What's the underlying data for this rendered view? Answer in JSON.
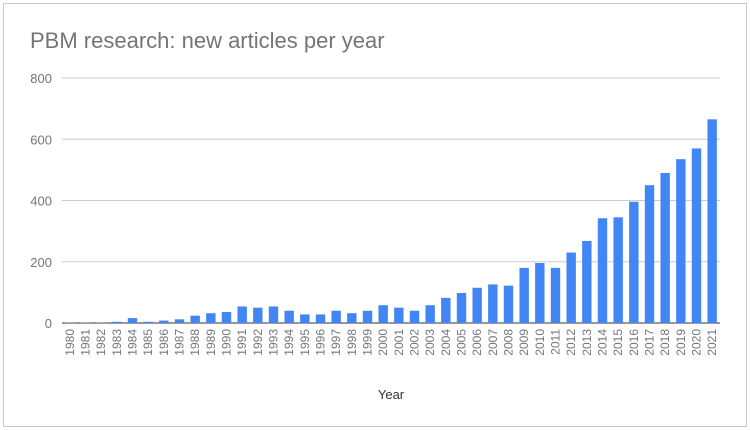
{
  "chart_data": {
    "type": "bar",
    "title": "PBM research: new articles per year",
    "xlabel": "Year",
    "ylabel": "",
    "ylim": [
      0,
      800
    ],
    "yticks": [
      0,
      200,
      400,
      600,
      800
    ],
    "grid": true,
    "legend": "none",
    "bar_color": "#4285f4",
    "categories": [
      "1980",
      "1981",
      "1982",
      "1983",
      "1984",
      "1985",
      "1986",
      "1987",
      "1988",
      "1989",
      "1990",
      "1991",
      "1992",
      "1993",
      "1994",
      "1995",
      "1996",
      "1997",
      "1998",
      "1999",
      "2000",
      "2001",
      "2002",
      "2003",
      "2004",
      "2005",
      "2006",
      "2007",
      "2008",
      "2009",
      "2010",
      "2011",
      "2012",
      "2013",
      "2014",
      "2015",
      "2016",
      "2017",
      "2018",
      "2019",
      "2020",
      "2021"
    ],
    "values": [
      1,
      1,
      1,
      4,
      16,
      4,
      8,
      12,
      24,
      32,
      36,
      54,
      50,
      54,
      40,
      28,
      28,
      40,
      32,
      40,
      58,
      50,
      40,
      58,
      82,
      98,
      115,
      126,
      122,
      180,
      196,
      180,
      230,
      268,
      342,
      345,
      396,
      450,
      490,
      535,
      570,
      665
    ]
  }
}
